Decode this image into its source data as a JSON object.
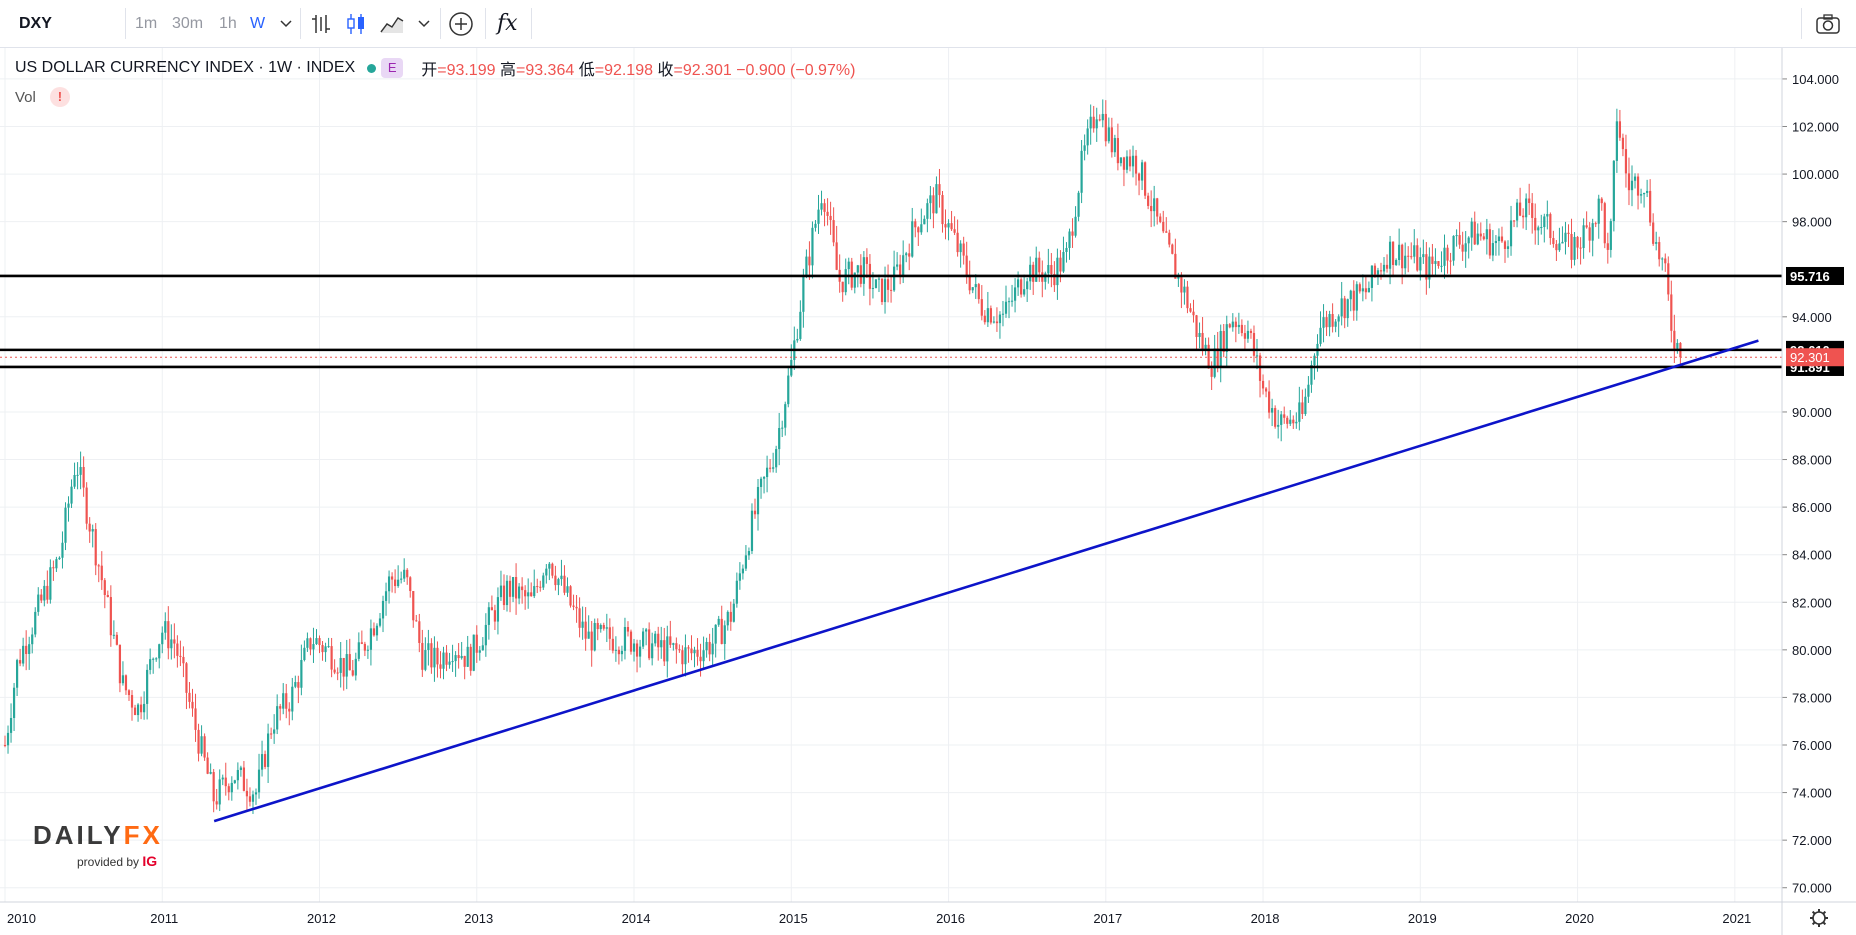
{
  "toolbar": {
    "symbol": "DXY",
    "timeframes": [
      "1m",
      "30m",
      "1h",
      "W"
    ],
    "active_timeframe": "W",
    "tools": [
      "bar-style-icon",
      "candles-icon",
      "area-icon",
      "chevron-down-icon",
      "add-compare-icon",
      "indicators-icon",
      "camera-icon"
    ],
    "indicators_label": "fx"
  },
  "legend": {
    "title": "US DOLLAR CURRENCY INDEX · 1W · INDEX",
    "badge_e": "E",
    "open_label": "开",
    "open": "93.199",
    "high_label": "高",
    "high": "93.364",
    "low_label": "低",
    "low": "92.198",
    "close_label": "收",
    "close": "92.301",
    "change": "−0.900 (−0.97%)",
    "up_color": "#26a69a",
    "down_color": "#ef5350"
  },
  "volume": {
    "label": "Vol",
    "warning": "!"
  },
  "branding": {
    "brand_main": "DAILY",
    "brand_fx": "FX",
    "provided_by": "provided by",
    "ig": "IG"
  },
  "chart_data": {
    "type": "candlestick",
    "title": "US DOLLAR CURRENCY INDEX · 1W · INDEX",
    "x_tick_labels": [
      "2010",
      "2011",
      "2012",
      "2013",
      "2014",
      "2015",
      "2016",
      "2017",
      "2018",
      "2019",
      "2020",
      "2021"
    ],
    "y_tick_labels": [
      "70.000",
      "72.000",
      "74.000",
      "76.000",
      "78.000",
      "80.000",
      "82.000",
      "84.000",
      "86.000",
      "88.000",
      "90.000",
      "94.000",
      "98.000",
      "100.000",
      "102.000",
      "104.000"
    ],
    "ylim": [
      69.4,
      105.3
    ],
    "xlim": [
      2010.0,
      2021.3
    ],
    "grid": true,
    "price_path": [
      [
        2010.0,
        76.0
      ],
      [
        2010.08,
        79.5
      ],
      [
        2010.2,
        81.5
      ],
      [
        2010.35,
        84.0
      ],
      [
        2010.45,
        88.0
      ],
      [
        2010.6,
        83.5
      ],
      [
        2010.75,
        78.5
      ],
      [
        2010.85,
        77.5
      ],
      [
        2010.95,
        80.0
      ],
      [
        2011.0,
        80.8
      ],
      [
        2011.08,
        80.3
      ],
      [
        2011.2,
        77.0
      ],
      [
        2011.33,
        73.7
      ],
      [
        2011.45,
        74.8
      ],
      [
        2011.6,
        74.0
      ],
      [
        2011.7,
        77.0
      ],
      [
        2011.82,
        78.0
      ],
      [
        2011.95,
        80.5
      ],
      [
        2012.05,
        80.0
      ],
      [
        2012.2,
        79.0
      ],
      [
        2012.35,
        81.2
      ],
      [
        2012.45,
        83.0
      ],
      [
        2012.55,
        83.0
      ],
      [
        2012.65,
        79.8
      ],
      [
        2012.75,
        79.5
      ],
      [
        2012.85,
        80.2
      ],
      [
        2012.95,
        79.6
      ],
      [
        2013.1,
        81.5
      ],
      [
        2013.2,
        82.6
      ],
      [
        2013.35,
        82.0
      ],
      [
        2013.45,
        84.0
      ],
      [
        2013.55,
        82.5
      ],
      [
        2013.7,
        80.5
      ],
      [
        2013.85,
        80.5
      ],
      [
        2014.0,
        80.4
      ],
      [
        2014.15,
        80.1
      ],
      [
        2014.35,
        79.8
      ],
      [
        2014.5,
        80.3
      ],
      [
        2014.62,
        81.5
      ],
      [
        2014.7,
        84.0
      ],
      [
        2014.8,
        86.5
      ],
      [
        2014.9,
        88.5
      ],
      [
        2015.0,
        92.0
      ],
      [
        2015.08,
        95.5
      ],
      [
        2015.2,
        99.5
      ],
      [
        2015.3,
        95.5
      ],
      [
        2015.45,
        96.0
      ],
      [
        2015.55,
        95.0
      ],
      [
        2015.65,
        95.5
      ],
      [
        2015.8,
        98.0
      ],
      [
        2015.92,
        99.0
      ],
      [
        2016.05,
        97.0
      ],
      [
        2016.2,
        94.5
      ],
      [
        2016.35,
        94.0
      ],
      [
        2016.5,
        96.0
      ],
      [
        2016.65,
        95.8
      ],
      [
        2016.75,
        96.5
      ],
      [
        2016.85,
        100.5
      ],
      [
        2016.95,
        103.0
      ],
      [
        2017.05,
        101.0
      ],
      [
        2017.2,
        100.5
      ],
      [
        2017.35,
        97.5
      ],
      [
        2017.5,
        95.0
      ],
      [
        2017.6,
        93.0
      ],
      [
        2017.68,
        92.0
      ],
      [
        2017.8,
        94.0
      ],
      [
        2017.9,
        93.5
      ],
      [
        2018.0,
        91.0
      ],
      [
        2018.1,
        89.5
      ],
      [
        2018.25,
        89.8
      ],
      [
        2018.35,
        93.5
      ],
      [
        2018.5,
        94.5
      ],
      [
        2018.65,
        95.0
      ],
      [
        2018.8,
        96.8
      ],
      [
        2018.95,
        96.5
      ],
      [
        2019.05,
        96.0
      ],
      [
        2019.2,
        97.0
      ],
      [
        2019.35,
        97.5
      ],
      [
        2019.5,
        97.0
      ],
      [
        2019.65,
        98.5
      ],
      [
        2019.8,
        97.8
      ],
      [
        2019.95,
        96.8
      ],
      [
        2020.05,
        97.5
      ],
      [
        2020.15,
        98.8
      ],
      [
        2020.2,
        96.0
      ],
      [
        2020.25,
        102.5
      ],
      [
        2020.32,
        99.5
      ],
      [
        2020.42,
        99.8
      ],
      [
        2020.5,
        97.0
      ],
      [
        2020.55,
        96.0
      ],
      [
        2020.6,
        93.5
      ],
      [
        2020.66,
        92.3
      ]
    ],
    "horizontal_levels": [
      {
        "value": 95.716,
        "label": "95.716"
      },
      {
        "value": 92.61,
        "label": "92.610"
      },
      {
        "value": 91.891,
        "label": "91.891"
      }
    ],
    "current_price": {
      "value": 92.301,
      "label": "92.301"
    },
    "trendline": {
      "x1": 2011.33,
      "y1": 72.8,
      "x2": 2021.15,
      "y2": 93.0,
      "color": "#0d14c9"
    }
  }
}
